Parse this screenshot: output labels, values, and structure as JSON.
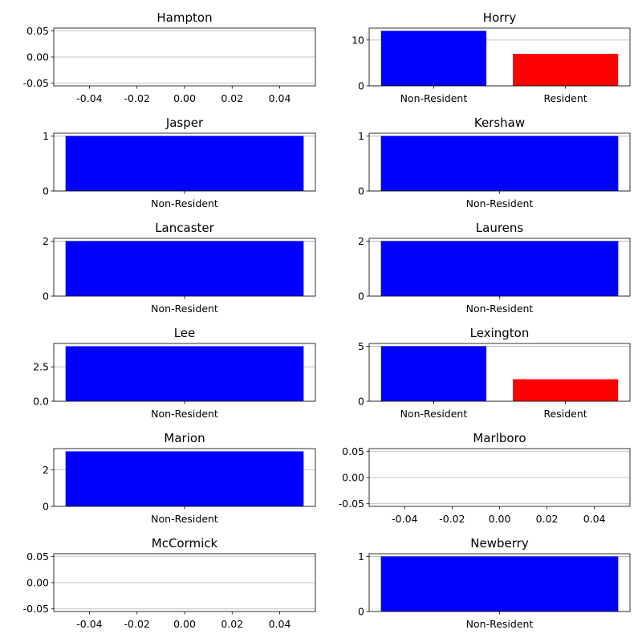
{
  "chart_data": [
    {
      "type": "bar",
      "title": "Hampton",
      "categories": [],
      "values": [],
      "ylim": [
        -0.055,
        0.055
      ],
      "yticks": [
        "0.05",
        "0.00",
        "-0.05"
      ],
      "xlim": [
        -0.055,
        0.055
      ],
      "xticks": [
        "-0.04",
        "-0.02",
        "0.00",
        "0.02",
        "0.04"
      ],
      "grid": "y"
    },
    {
      "type": "bar",
      "title": "Horry",
      "categories": [
        "Non-Resident",
        "Resident"
      ],
      "values": [
        12,
        7
      ],
      "ylim": [
        0,
        12.6
      ],
      "yticks": [
        "0",
        "10"
      ],
      "grid": "y"
    },
    {
      "type": "bar",
      "title": "Jasper",
      "categories": [
        "Non-Resident"
      ],
      "values": [
        1
      ],
      "ylim": [
        0,
        1.05
      ],
      "yticks": [
        "0",
        "1"
      ],
      "grid": "y"
    },
    {
      "type": "bar",
      "title": "Kershaw",
      "categories": [
        "Non-Resident"
      ],
      "values": [
        1
      ],
      "ylim": [
        0,
        1.05
      ],
      "yticks": [
        "0",
        "1"
      ],
      "grid": "y"
    },
    {
      "type": "bar",
      "title": "Lancaster",
      "categories": [
        "Non-Resident"
      ],
      "values": [
        2
      ],
      "ylim": [
        0,
        2.1
      ],
      "yticks": [
        "0",
        "2"
      ],
      "grid": "y"
    },
    {
      "type": "bar",
      "title": "Laurens",
      "categories": [
        "Non-Resident"
      ],
      "values": [
        2
      ],
      "ylim": [
        0,
        2.1
      ],
      "yticks": [
        "0",
        "2"
      ],
      "grid": "y"
    },
    {
      "type": "bar",
      "title": "Lee",
      "categories": [
        "Non-Resident"
      ],
      "values": [
        4
      ],
      "ylim": [
        0,
        4.2
      ],
      "yticks": [
        "0.0",
        "2.5"
      ],
      "grid": "y"
    },
    {
      "type": "bar",
      "title": "Lexington",
      "categories": [
        "Non-Resident",
        "Resident"
      ],
      "values": [
        5,
        2
      ],
      "ylim": [
        0,
        5.25
      ],
      "yticks": [
        "0",
        "5"
      ],
      "grid": "y"
    },
    {
      "type": "bar",
      "title": "Marion",
      "categories": [
        "Non-Resident"
      ],
      "values": [
        3
      ],
      "ylim": [
        0,
        3.15
      ],
      "yticks": [
        "0",
        "2"
      ],
      "grid": "y"
    },
    {
      "type": "bar",
      "title": "Marlboro",
      "categories": [],
      "values": [],
      "ylim": [
        -0.055,
        0.055
      ],
      "yticks": [
        "0.05",
        "0.00",
        "-0.05"
      ],
      "xlim": [
        -0.055,
        0.055
      ],
      "xticks": [
        "-0.04",
        "-0.02",
        "0.00",
        "0.02",
        "0.04"
      ],
      "grid": "y"
    },
    {
      "type": "bar",
      "title": "McCormick",
      "categories": [],
      "values": [],
      "ylim": [
        -0.055,
        0.055
      ],
      "yticks": [
        "0.05",
        "0.00",
        "-0.05"
      ],
      "xlim": [
        -0.055,
        0.055
      ],
      "xticks": [
        "-0.04",
        "-0.02",
        "0.00",
        "0.02",
        "0.04"
      ],
      "grid": "y"
    },
    {
      "type": "bar",
      "title": "Newberry",
      "categories": [
        "Non-Resident"
      ],
      "values": [
        1
      ],
      "ylim": [
        0,
        1.05
      ],
      "yticks": [
        "0",
        "1"
      ],
      "grid": "y"
    }
  ],
  "colors": {
    "Non-Resident": "#0000ff",
    "Resident": "#ff0000",
    "grid": "#b0b0b0"
  }
}
